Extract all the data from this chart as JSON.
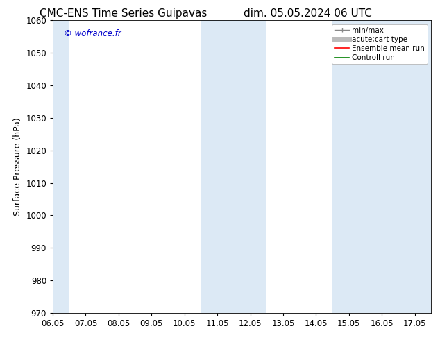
{
  "title": "CMC-ENS Time Series Guipavas",
  "title2": "dim. 05.05.2024 06 UTC",
  "ylabel": "Surface Pressure (hPa)",
  "xlabel": "",
  "ylim": [
    970,
    1060
  ],
  "xlim": [
    0.0,
    11.5
  ],
  "yticks": [
    970,
    980,
    990,
    1000,
    1010,
    1020,
    1030,
    1040,
    1050,
    1060
  ],
  "xtick_labels": [
    "06.05",
    "07.05",
    "08.05",
    "09.05",
    "10.05",
    "11.05",
    "12.05",
    "13.05",
    "14.05",
    "15.05",
    "16.05",
    "17.05"
  ],
  "xtick_positions": [
    0,
    1,
    2,
    3,
    4,
    5,
    6,
    7,
    8,
    9,
    10,
    11
  ],
  "plot_bg_color": "#ffffff",
  "shaded_bands": [
    {
      "xmin": -0.5,
      "xmax": 0.5,
      "color": "#dce9f5"
    },
    {
      "xmin": 4.5,
      "xmax": 6.5,
      "color": "#dce9f5"
    },
    {
      "xmin": 8.5,
      "xmax": 11.5,
      "color": "#dce9f5"
    }
  ],
  "watermark": "© wofrance.fr",
  "watermark_color": "#0000cc",
  "background_color": "#ffffff",
  "title_fontsize": 11,
  "axis_fontsize": 9,
  "tick_fontsize": 8.5,
  "legend_fontsize": 7.5
}
